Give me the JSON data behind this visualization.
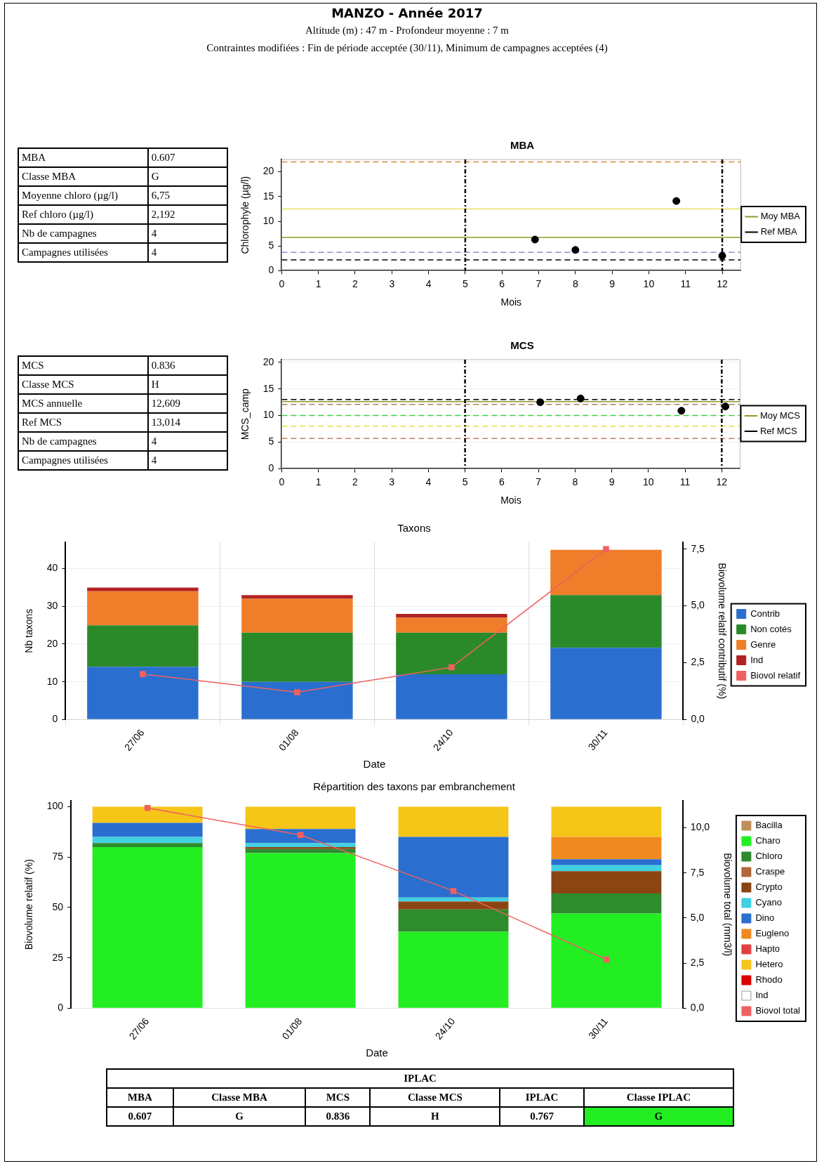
{
  "chart_data": [
    {
      "type": "other",
      "title": "MANZO - Année 2017",
      "subtitle": "Altitude (m) : 47 m - Profondeur moyenne : 7 m",
      "annotations": [
        "Contraintes modifiées : Fin de période acceptée (30/11), Minimum de campagnes acceptées (4)"
      ]
    },
    {
      "type": "other",
      "categories": [
        "MBA",
        "Classe MBA",
        "Moyenne chloro (µg/l)",
        "Ref chloro (µg/l)",
        "Nb de campagnes",
        "Campagnes utilisées"
      ],
      "annotations": [
        "0.607",
        "G",
        "6,75",
        "2,192",
        "4",
        "4"
      ]
    },
    {
      "type": "scatter",
      "title": "MBA",
      "xlabel": "Mois",
      "ylabel": "Chlorophyle (µg/l)",
      "xlim": [
        0,
        12.5
      ],
      "ylim": [
        0,
        22.5
      ],
      "xticks": [
        0,
        1,
        2,
        3,
        4,
        5,
        6,
        7,
        8,
        9,
        10,
        11,
        12
      ],
      "yticks": [
        0,
        5,
        10,
        15,
        20
      ],
      "marker": "circle",
      "legend": "right",
      "series": [
        {
          "color": "#000000",
          "x": [
            6.9,
            8.0,
            10.75,
            12.0
          ],
          "values": [
            6.3,
            4.2,
            14.1,
            3.0
          ]
        }
      ],
      "ref_lines": [
        {
          "axis": "y",
          "value": 22,
          "color": "#d08a3a",
          "line_style": "dashed"
        },
        {
          "axis": "y",
          "value": 12.5,
          "color": "#e8e060",
          "line_style": "solid"
        },
        {
          "axis": "y",
          "value": 6.75,
          "color": "#8c9a2a",
          "line_style": "solid",
          "label": "Moy MBA"
        },
        {
          "axis": "y",
          "value": 3.7,
          "color": "#9090c0",
          "line_style": "dashed"
        },
        {
          "axis": "y",
          "value": 2.192,
          "color": "#000000",
          "line_style": "dashed",
          "label": "Ref MBA"
        },
        {
          "axis": "x",
          "value": 5,
          "color": "#000000",
          "line_style": "dotted"
        },
        {
          "axis": "x",
          "value": 12,
          "color": "#000000",
          "line_style": "dotted"
        }
      ]
    },
    {
      "type": "other",
      "categories": [
        "MCS",
        "Classe MCS",
        "MCS annuelle",
        "Ref MCS",
        "Nb de campagnes",
        "Campagnes utilisées"
      ],
      "annotations": [
        "0.836",
        "H",
        "12,609",
        "13,014",
        "4",
        "4"
      ]
    },
    {
      "type": "scatter",
      "title": "MCS",
      "xlabel": "Mois",
      "ylabel": "MCS_camp",
      "xlim": [
        0,
        12.5
      ],
      "ylim": [
        0,
        20.5
      ],
      "xticks": [
        0,
        1,
        2,
        3,
        4,
        5,
        6,
        7,
        8,
        9,
        10,
        11,
        12
      ],
      "yticks": [
        0,
        5,
        10,
        15,
        20
      ],
      "marker": "circle",
      "legend": "right",
      "grid": "y",
      "series": [
        {
          "color": "#000000",
          "x": [
            7.05,
            8.15,
            10.9,
            12.1
          ],
          "values": [
            12.5,
            13.2,
            10.9,
            11.7
          ]
        }
      ],
      "ref_lines": [
        {
          "axis": "y",
          "value": 12.609,
          "color": "#8c9a2a",
          "line_style": "solid",
          "label": "Moy MCS"
        },
        {
          "axis": "y",
          "value": 13.014,
          "color": "#000000",
          "line_style": "dashed",
          "label": "Ref MCS"
        },
        {
          "axis": "y",
          "value": 12.1,
          "color": "#a08070",
          "line_style": "dashed"
        },
        {
          "axis": "y",
          "value": 10,
          "color": "#40d040",
          "line_style": "dashed"
        },
        {
          "axis": "y",
          "value": 8,
          "color": "#e0e040",
          "line_style": "dashed"
        },
        {
          "axis": "y",
          "value": 5.7,
          "color": "#c08060",
          "line_style": "dashed"
        },
        {
          "axis": "x",
          "value": 5,
          "color": "#000000",
          "line_style": "dotted"
        },
        {
          "axis": "x",
          "value": 12,
          "color": "#000000",
          "line_style": "dotted"
        }
      ]
    },
    {
      "type": "bar",
      "title": "Taxons",
      "xlabel": "Date",
      "ylabel": "Nb taxons",
      "y2label": "Biovolume relatif contributif (%)",
      "stacked": true,
      "grid": true,
      "legend": "right",
      "categories": [
        "27/06",
        "01/08",
        "24/10",
        "30/11"
      ],
      "ylim": [
        0,
        47
      ],
      "yticks": [
        0,
        10,
        20,
        30,
        40
      ],
      "y2lim": [
        0,
        7.8
      ],
      "y2ticks": [
        {
          "value": 0,
          "label": "0,0"
        },
        {
          "value": 2.5,
          "label": "2,5"
        },
        {
          "value": 5,
          "label": "5,0"
        },
        {
          "value": 7.5,
          "label": "7,5"
        }
      ],
      "series": [
        {
          "name": "Contrib",
          "color": "#2a6fcf",
          "values": [
            14,
            10,
            12,
            19
          ]
        },
        {
          "name": "Non cotés",
          "color": "#2a8a2a",
          "values": [
            11,
            13,
            11,
            14
          ]
        },
        {
          "name": "Genre",
          "color": "#ef7d2a",
          "values": [
            9,
            9,
            4,
            12
          ]
        },
        {
          "name": "Ind",
          "color": "#b22222",
          "values": [
            1,
            1,
            1,
            0
          ]
        },
        {
          "name": "Biovol relatif",
          "type": "line",
          "axis": "y2",
          "marker": "square",
          "color": "#f06060",
          "values": [
            2.0,
            1.2,
            2.3,
            7.5
          ]
        }
      ]
    },
    {
      "type": "bar",
      "title": "Répartition des taxons par embranchement",
      "xlabel": "Date",
      "ylabel": "Biovolume relatif (%)",
      "y2label": "Biovolume total (mm3/l)",
      "stacked": true,
      "legend": "right",
      "categories": [
        "27/06",
        "01/08",
        "24/10",
        "30/11"
      ],
      "ylim": [
        0,
        103
      ],
      "yticks": [
        0,
        25,
        50,
        75,
        100
      ],
      "y2lim": [
        0,
        11.5
      ],
      "y2ticks": [
        {
          "value": 0,
          "label": "0,0"
        },
        {
          "value": 2.5,
          "label": "2,5"
        },
        {
          "value": 5,
          "label": "5,0"
        },
        {
          "value": 7.5,
          "label": "7,5"
        },
        {
          "value": 10,
          "label": "10,0"
        }
      ],
      "series": [
        {
          "name": "Bacilla",
          "color": "#c0905a",
          "values": [
            0,
            0,
            0,
            0
          ]
        },
        {
          "name": "Charo",
          "color": "#22ee22",
          "values": [
            80,
            77,
            38,
            47
          ]
        },
        {
          "name": "Chloro",
          "color": "#2e8b2e",
          "values": [
            2,
            2,
            11,
            10
          ]
        },
        {
          "name": "Craspe",
          "color": "#b5653a",
          "values": [
            0,
            0,
            0,
            0
          ]
        },
        {
          "name": "Crypto",
          "color": "#8b4513",
          "values": [
            0,
            1,
            4,
            11
          ]
        },
        {
          "name": "Cyano",
          "color": "#40d0e0",
          "values": [
            3,
            2,
            2,
            3
          ]
        },
        {
          "name": "Dino",
          "color": "#2a6fcf",
          "values": [
            7,
            7,
            30,
            3
          ]
        },
        {
          "name": "Eugleno",
          "color": "#f08a20",
          "values": [
            0,
            0,
            0,
            11
          ]
        },
        {
          "name": "Hapto",
          "color": "#e04040",
          "values": [
            0,
            0,
            0,
            0
          ]
        },
        {
          "name": "Hetero",
          "color": "#f5c518",
          "values": [
            8,
            11,
            15,
            15
          ]
        },
        {
          "name": "Rhodo",
          "color": "#dd0000",
          "values": [
            0,
            0,
            0,
            0
          ]
        },
        {
          "name": "Ind",
          "color": "#ffffff",
          "values": [
            0,
            0,
            0,
            0
          ]
        },
        {
          "name": "Biovol total",
          "type": "line",
          "axis": "y2",
          "marker": "square",
          "color": "#f06060",
          "values": [
            11.1,
            9.6,
            6.5,
            2.7
          ]
        }
      ]
    },
    {
      "type": "other",
      "title": "IPLAC",
      "categories": [
        "MBA",
        "Classe MBA",
        "MCS",
        "Classe MCS",
        "IPLAC",
        "Classe IPLAC"
      ],
      "annotations": [
        "0.607",
        "G",
        "0.836",
        "H",
        "0.767",
        "G"
      ],
      "colors": [
        null,
        null,
        null,
        null,
        null,
        "#22ee22"
      ]
    }
  ]
}
